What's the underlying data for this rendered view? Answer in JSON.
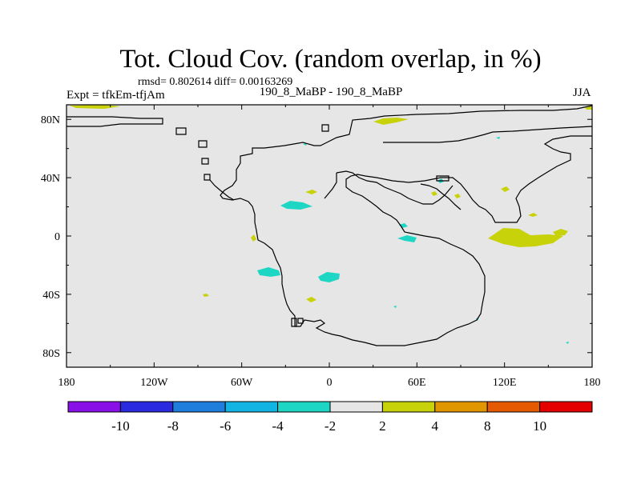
{
  "title": "Tot. Cloud Cov. (random overlap, in %)",
  "stats": "rmsd= 0.802614  diff= 0.00163269",
  "experiment": "Expt = tfkEm-tfjAm",
  "center_label": "190_8_MaBP - 190_8_MaBP",
  "season": "JJA",
  "colors": {
    "background_field": "#e6e6e6",
    "coastline": "#000000",
    "levels": [
      "#8a10e8",
      "#2a2ae0",
      "#1f7ddb",
      "#12b4e4",
      "#1ed6c4",
      "#e6e6e6",
      "#c8d20a",
      "#e09600",
      "#e55a00",
      "#e40000"
    ]
  },
  "chart_data": {
    "type": "map",
    "projection": "cylindrical equidistant",
    "xlim": [
      -180,
      180
    ],
    "ylim": [
      -90,
      90
    ],
    "x_ticks": [
      {
        "value": -180,
        "label": "180"
      },
      {
        "value": -120,
        "label": "120W"
      },
      {
        "value": -60,
        "label": "60W"
      },
      {
        "value": 0,
        "label": "0"
      },
      {
        "value": 60,
        "label": "60E"
      },
      {
        "value": 120,
        "label": "120E"
      },
      {
        "value": 180,
        "label": "180"
      }
    ],
    "y_ticks": [
      {
        "value": 80,
        "label": "80N"
      },
      {
        "value": 40,
        "label": "40N"
      },
      {
        "value": 0,
        "label": "0"
      },
      {
        "value": -40,
        "label": "40S"
      },
      {
        "value": -80,
        "label": "80S"
      }
    ],
    "colorbar": {
      "bins": 10,
      "boundary_labels": [
        "-10",
        "-8",
        "-6",
        "-4",
        "-2",
        "2",
        "4",
        "8",
        "10"
      ]
    },
    "anomalies": [
      {
        "lon": -149,
        "lat": 87,
        "level": "2 to 4"
      },
      {
        "lon": 36,
        "lat": 78,
        "level": "2 to 4"
      },
      {
        "lon": 156,
        "lat": 88,
        "level": "2 to 4"
      },
      {
        "lon": -15,
        "lat": 31,
        "level": "2 to 4"
      },
      {
        "lon": -25,
        "lat": 21,
        "level": "-4 to -2"
      },
      {
        "lon": -53,
        "lat": -2,
        "level": "2 to 4"
      },
      {
        "lon": -41,
        "lat": -25,
        "level": "-4 to -2"
      },
      {
        "lon": 0,
        "lat": -28,
        "level": "-4 to -2"
      },
      {
        "lon": -14,
        "lat": -44,
        "level": "2 to 4"
      },
      {
        "lon": -83,
        "lat": -41,
        "level": "2 to 4"
      },
      {
        "lon": 51,
        "lat": 7,
        "level": "-4 to -2"
      },
      {
        "lon": 53,
        "lat": -2,
        "level": "-4 to -2"
      },
      {
        "lon": 124,
        "lat": -2,
        "level": "2 to 4"
      },
      {
        "lon": 158,
        "lat": 2,
        "level": "2 to 4"
      },
      {
        "lon": 120,
        "lat": 32,
        "level": "2 to 4"
      },
      {
        "lon": 138,
        "lat": 14,
        "level": "2 to 4"
      },
      {
        "lon": 70,
        "lat": 32,
        "level": "2 to 4"
      },
      {
        "lon": 86,
        "lat": 28,
        "level": "2 to 4"
      },
      {
        "lon": 75,
        "lat": 38,
        "level": "-4 to -2"
      },
      {
        "lon": -17,
        "lat": 63,
        "level": "-4 to -2"
      },
      {
        "lon": 115,
        "lat": 67,
        "level": "-4 to -2"
      }
    ]
  }
}
